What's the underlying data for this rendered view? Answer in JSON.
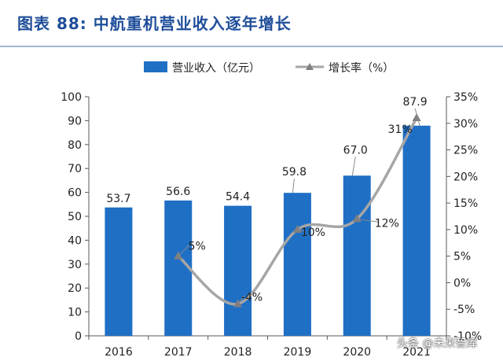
{
  "figure": {
    "title": "图表 88:  中航重机营业收入逐年增长",
    "watermark": "头条 @未来智库"
  },
  "chart_data": {
    "type": "bar",
    "categories": [
      "2016",
      "2017",
      "2018",
      "2019",
      "2020",
      "2021"
    ],
    "series": [
      {
        "name": "营业收入（亿元）",
        "type": "bar",
        "axis": "left",
        "values": [
          53.7,
          56.6,
          54.4,
          59.8,
          67.0,
          87.9
        ],
        "labels": [
          "53.7",
          "56.6",
          "54.4",
          "59.8",
          "67.0",
          "87.9"
        ],
        "color": "#1f6fc5"
      },
      {
        "name": "增长率（%）",
        "type": "line",
        "axis": "right",
        "values": [
          null,
          5,
          -4,
          10,
          12,
          31
        ],
        "labels": [
          "",
          "5%",
          "-4%",
          "10%",
          "12%",
          "31%"
        ],
        "color": "#a6a6a6"
      }
    ],
    "y_left": {
      "min": 0,
      "max": 100,
      "step": 10,
      "ticks": [
        "0",
        "10",
        "20",
        "30",
        "40",
        "50",
        "60",
        "70",
        "80",
        "90",
        "100"
      ]
    },
    "y_right": {
      "min": -10,
      "max": 35,
      "step": 5,
      "ticks": [
        "-10%",
        "-5%",
        "0%",
        "5%",
        "10%",
        "15%",
        "20%",
        "25%",
        "30%",
        "35%"
      ]
    },
    "legend_position": "top",
    "grid": false
  }
}
